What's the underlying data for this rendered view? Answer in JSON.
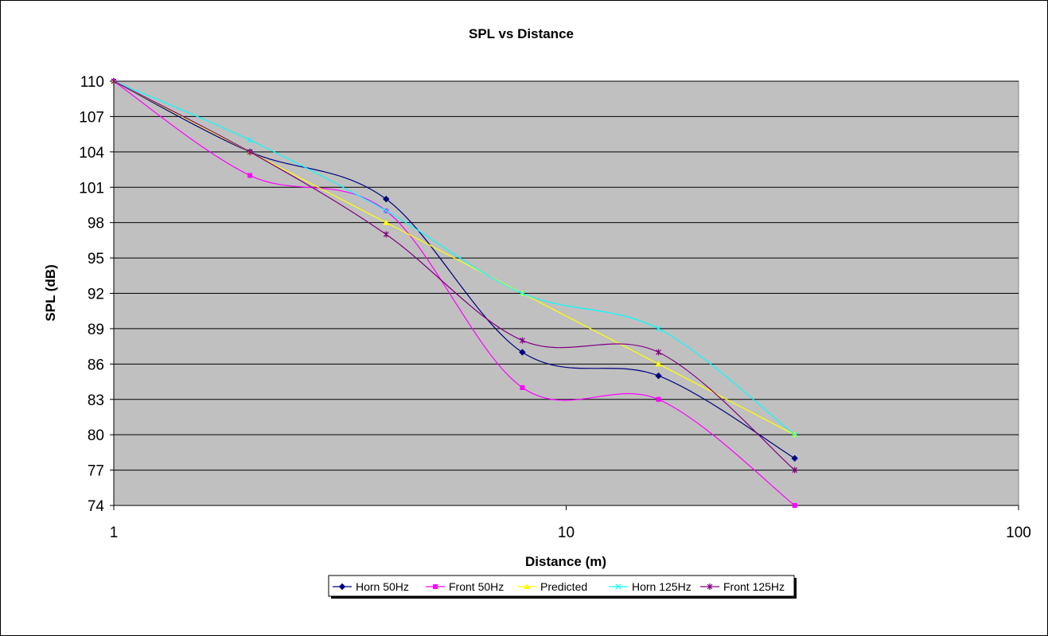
{
  "chart_data": {
    "type": "line",
    "title": "SPL vs Distance",
    "xlabel": "Distance (m)",
    "ylabel": "SPL (dB)",
    "x_scale": "log",
    "xlim": [
      1,
      100
    ],
    "ylim": [
      74,
      110
    ],
    "x_ticks": [
      1,
      10,
      100
    ],
    "x_tick_labels": [
      "1",
      "10",
      "100"
    ],
    "y_ticks": [
      110,
      107,
      104,
      101,
      98,
      95,
      92,
      89,
      86,
      83,
      80,
      77,
      74
    ],
    "y_tick_labels": [
      "110",
      "107",
      "104",
      "101",
      "98",
      "95",
      "92",
      "89",
      "86",
      "83",
      "80",
      "77",
      "74"
    ],
    "grid": true,
    "plot_background": "#c0c0c0",
    "legend_position": "bottom",
    "x": [
      1,
      2,
      4,
      8,
      16,
      32
    ],
    "series": [
      {
        "name": "Horn 50Hz",
        "color": "#000080",
        "marker": "diamond",
        "values": [
          110,
          104,
          100,
          87,
          85,
          78
        ]
      },
      {
        "name": "Front 50Hz",
        "color": "#ff00ff",
        "marker": "square",
        "values": [
          110,
          102,
          99,
          84,
          83,
          74
        ]
      },
      {
        "name": "Predicted",
        "color": "#ffff00",
        "marker": "triangle",
        "values": [
          110,
          104,
          98,
          92,
          86,
          80
        ]
      },
      {
        "name": "Horn 125Hz",
        "color": "#00ffff",
        "marker": "x",
        "values": [
          110,
          105,
          99,
          92,
          89,
          80
        ]
      },
      {
        "name": "Front 125Hz",
        "color": "#800080",
        "marker": "star",
        "values": [
          110,
          104,
          97,
          88,
          87,
          77
        ]
      }
    ]
  }
}
